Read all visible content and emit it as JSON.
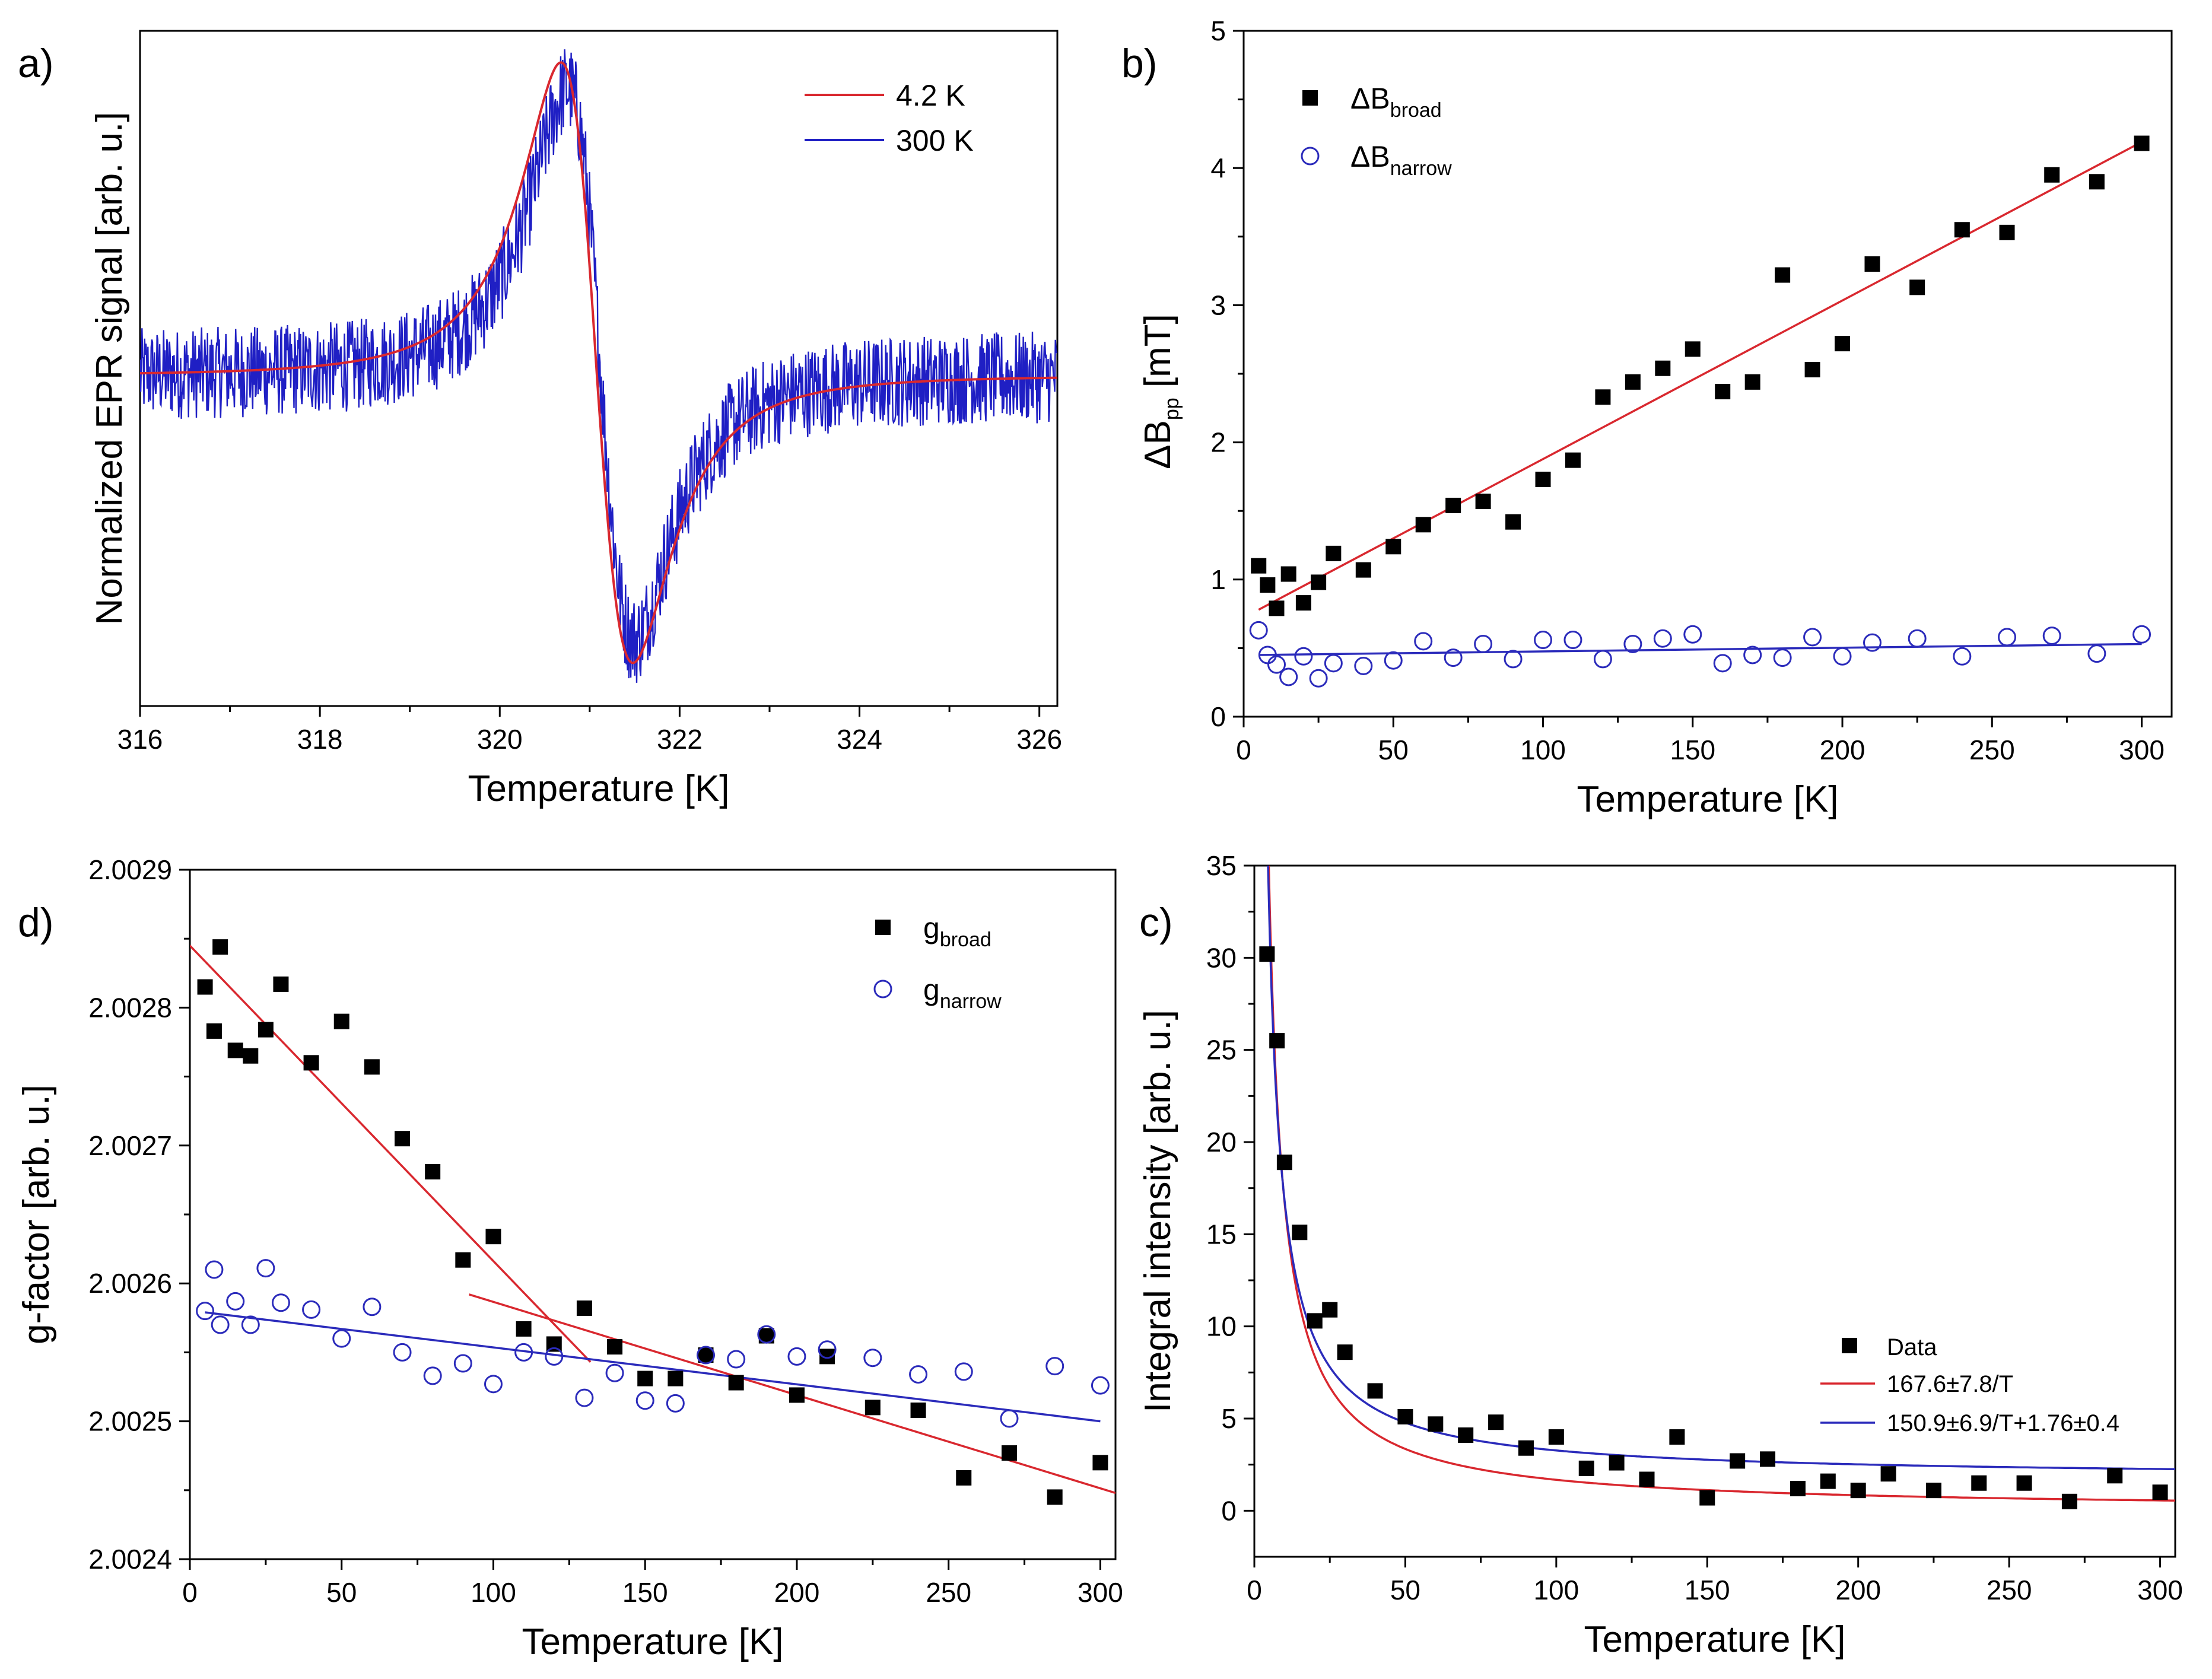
{
  "figure": {
    "panels": [
      "a",
      "b",
      "d",
      "c"
    ]
  },
  "chart_data": [
    {
      "id": "a",
      "panel_label": "a)",
      "type": "line",
      "title": "",
      "xlabel": "Temperature [K]",
      "ylabel": "Normalized EPR signal [arb. u.]",
      "xlim": [
        316,
        326.2
      ],
      "ylim": [
        -1.15,
        1.2
      ],
      "xticks": [
        316,
        318,
        320,
        322,
        324,
        326
      ],
      "xtick_labels": [
        "316",
        "318",
        "320",
        "322",
        "324",
        "326"
      ],
      "yticks": [],
      "legend_position": "top-right",
      "series": [
        {
          "name": "4.2 K",
          "color": "#d9282f",
          "noise": 0.0,
          "x0": 320.68,
          "x1": 321.48,
          "y0": 1.09,
          "y1": -1.0
        },
        {
          "name": "300 K",
          "color": "#1f1fc4",
          "noise": 0.16,
          "x0": 320.75,
          "x1": 321.5,
          "y0": 1.0,
          "y1": -0.92
        }
      ]
    },
    {
      "id": "b",
      "panel_label": "b)",
      "type": "scatter",
      "title": "",
      "xlabel": "Temperature [K]",
      "ylabel_main": "ΔB",
      "ylabel_sub": "pp",
      "ylabel_unit": " [mT]",
      "xlim": [
        0,
        310
      ],
      "ylim": [
        0,
        5
      ],
      "xticks": [
        0,
        50,
        100,
        150,
        200,
        250,
        300
      ],
      "xtick_labels": [
        "0",
        "50",
        "100",
        "150",
        "200",
        "250",
        "300"
      ],
      "yticks": [
        0,
        1,
        2,
        3,
        4,
        5
      ],
      "ytick_labels": [
        "0",
        "1",
        "2",
        "3",
        "4",
        "5"
      ],
      "legend_position": "top-left",
      "series": [
        {
          "name_main": "ΔB",
          "name_sub": "broad",
          "marker": "filled-square",
          "color": "#000000",
          "x": [
            5,
            8,
            11,
            15,
            20,
            25,
            30,
            40,
            50,
            60,
            70,
            80,
            90,
            100,
            110,
            120,
            130,
            140,
            150,
            160,
            170,
            180,
            190,
            200,
            210,
            225,
            240,
            255,
            270,
            285,
            300
          ],
          "y": [
            1.1,
            0.96,
            0.79,
            1.04,
            0.83,
            0.98,
            1.19,
            1.07,
            1.24,
            1.4,
            1.54,
            1.57,
            1.42,
            1.73,
            1.87,
            2.33,
            2.44,
            2.54,
            2.68,
            2.37,
            2.44,
            3.22,
            2.53,
            2.72,
            3.3,
            3.13,
            3.55,
            3.53,
            3.95,
            3.9,
            4.18
          ]
        },
        {
          "name_main": "ΔB",
          "name_sub": "narrow",
          "marker": "open-circle",
          "color": "#2b2bbb",
          "x": [
            5,
            8,
            11,
            15,
            20,
            25,
            30,
            40,
            50,
            60,
            70,
            80,
            90,
            100,
            110,
            120,
            130,
            140,
            150,
            160,
            170,
            180,
            190,
            200,
            210,
            225,
            240,
            255,
            270,
            285,
            300
          ],
          "y": [
            0.63,
            0.45,
            0.38,
            0.29,
            0.44,
            0.28,
            0.39,
            0.37,
            0.41,
            0.55,
            0.43,
            0.53,
            0.42,
            0.56,
            0.56,
            0.42,
            0.53,
            0.57,
            0.6,
            0.39,
            0.45,
            0.43,
            0.58,
            0.44,
            0.54,
            0.57,
            0.44,
            0.58,
            0.59,
            0.46,
            0.6
          ]
        }
      ],
      "fits": [
        {
          "color": "#d9282f",
          "x": [
            5,
            300
          ],
          "y": [
            0.78,
            4.19
          ]
        },
        {
          "color": "#2b2bbb",
          "x": [
            5,
            300
          ],
          "y": [
            0.45,
            0.53
          ]
        }
      ]
    },
    {
      "id": "d",
      "panel_label": "d)",
      "type": "scatter",
      "title": "",
      "xlabel": "Temperature [K]",
      "ylabel": "g-factor [arb. u.]",
      "xlim": [
        0,
        305
      ],
      "ylim": [
        2.0024,
        2.0029
      ],
      "xticks": [
        0,
        50,
        100,
        150,
        200,
        250,
        300
      ],
      "xtick_labels": [
        "0",
        "50",
        "100",
        "150",
        "200",
        "250",
        "300"
      ],
      "yticks": [
        2.0024,
        2.0025,
        2.0026,
        2.0027,
        2.0028,
        2.0029
      ],
      "ytick_labels": [
        "2.0024",
        "2.0025",
        "2.0026",
        "2.0027",
        "2.0028",
        "2.0029"
      ],
      "legend_position": "top-right",
      "series": [
        {
          "name_main": "g",
          "name_sub": "broad",
          "marker": "filled-square",
          "color": "#000000",
          "x": [
            5,
            8,
            10,
            15,
            20,
            25,
            30,
            40,
            50,
            60,
            70,
            80,
            90,
            100,
            110,
            120,
            130,
            140,
            150,
            160,
            170,
            180,
            190,
            200,
            210,
            225,
            240,
            255,
            270,
            285,
            300
          ],
          "y": [
            2.002815,
            2.002783,
            2.002844,
            2.002769,
            2.002765,
            2.002784,
            2.002817,
            2.00276,
            2.00279,
            2.002757,
            2.002705,
            2.002681,
            2.002617,
            2.002634,
            2.002567,
            2.002556,
            2.002582,
            2.002554,
            2.002531,
            2.002531,
            2.002548,
            2.002528,
            2.002562,
            2.002519,
            2.002547,
            2.00251,
            2.002508,
            2.002459,
            2.002477,
            2.002445,
            2.00247
          ]
        },
        {
          "name_main": "g",
          "name_sub": "narrow",
          "marker": "open-circle",
          "color": "#2b2bbb",
          "x": [
            5,
            8,
            10,
            15,
            20,
            25,
            30,
            40,
            50,
            60,
            70,
            80,
            90,
            100,
            110,
            120,
            130,
            140,
            150,
            160,
            170,
            180,
            190,
            200,
            210,
            225,
            240,
            255,
            270,
            285,
            300
          ],
          "y": [
            2.00258,
            2.00261,
            2.00257,
            2.002587,
            2.00257,
            2.002611,
            2.002586,
            2.002581,
            2.00256,
            2.002583,
            2.00255,
            2.002533,
            2.002542,
            2.002527,
            2.00255,
            2.002547,
            2.002517,
            2.002535,
            2.002515,
            2.002513,
            2.002548,
            2.002545,
            2.002563,
            2.002547,
            2.002552,
            2.002546,
            2.002534,
            2.002536,
            2.002502,
            2.00254,
            2.002526
          ]
        }
      ],
      "fits": [
        {
          "color": "#d9282f",
          "x": [
            0,
            132
          ],
          "y": [
            2.002845,
            2.002543
          ]
        },
        {
          "color": "#d9282f",
          "x": [
            92,
            305
          ],
          "y": [
            2.002592,
            2.002448
          ]
        },
        {
          "color": "#2b2bbb",
          "x": [
            5,
            300
          ],
          "y": [
            2.002579,
            2.0025
          ]
        }
      ]
    },
    {
      "id": "c",
      "panel_label": "c)",
      "type": "scatter",
      "title": "",
      "xlabel": "Temperature [K]",
      "ylabel": "Integral intensity [arb. u.]",
      "xlim": [
        0,
        305
      ],
      "ylim": [
        -2.5,
        35
      ],
      "xticks": [
        0,
        50,
        100,
        150,
        200,
        250,
        300
      ],
      "xtick_labels": [
        "0",
        "50",
        "100",
        "150",
        "200",
        "250",
        "300"
      ],
      "yticks": [
        0,
        5,
        10,
        15,
        20,
        25,
        30,
        35
      ],
      "ytick_labels": [
        "0",
        "5",
        "10",
        "15",
        "20",
        "25",
        "30",
        "35"
      ],
      "legend_position": "bottom-right",
      "series": [
        {
          "name": "Data",
          "marker": "filled-square",
          "color": "#000000",
          "x": [
            4.2,
            7.5,
            10,
            15,
            20,
            25,
            30,
            40,
            50,
            60,
            70,
            80,
            90,
            100,
            110,
            120,
            130,
            140,
            150,
            160,
            170,
            180,
            190,
            200,
            210,
            225,
            240,
            255,
            270,
            285,
            300
          ],
          "y": [
            30.2,
            25.5,
            18.9,
            15.1,
            10.3,
            10.9,
            8.6,
            6.5,
            5.1,
            4.7,
            4.1,
            4.8,
            3.4,
            4.0,
            2.3,
            2.6,
            1.7,
            4.0,
            0.7,
            2.7,
            2.8,
            1.2,
            1.6,
            1.1,
            2.0,
            1.1,
            1.5,
            1.5,
            0.5,
            1.9,
            1.0
          ]
        }
      ],
      "fits": [
        {
          "name": "167.6±7.8/T",
          "color": "#d9282f",
          "a": 167.6,
          "b": 0
        },
        {
          "name": "150.9±6.9/T+1.76±0.4",
          "color": "#2b2bbb",
          "a": 150.9,
          "b": 1.76
        }
      ]
    }
  ]
}
